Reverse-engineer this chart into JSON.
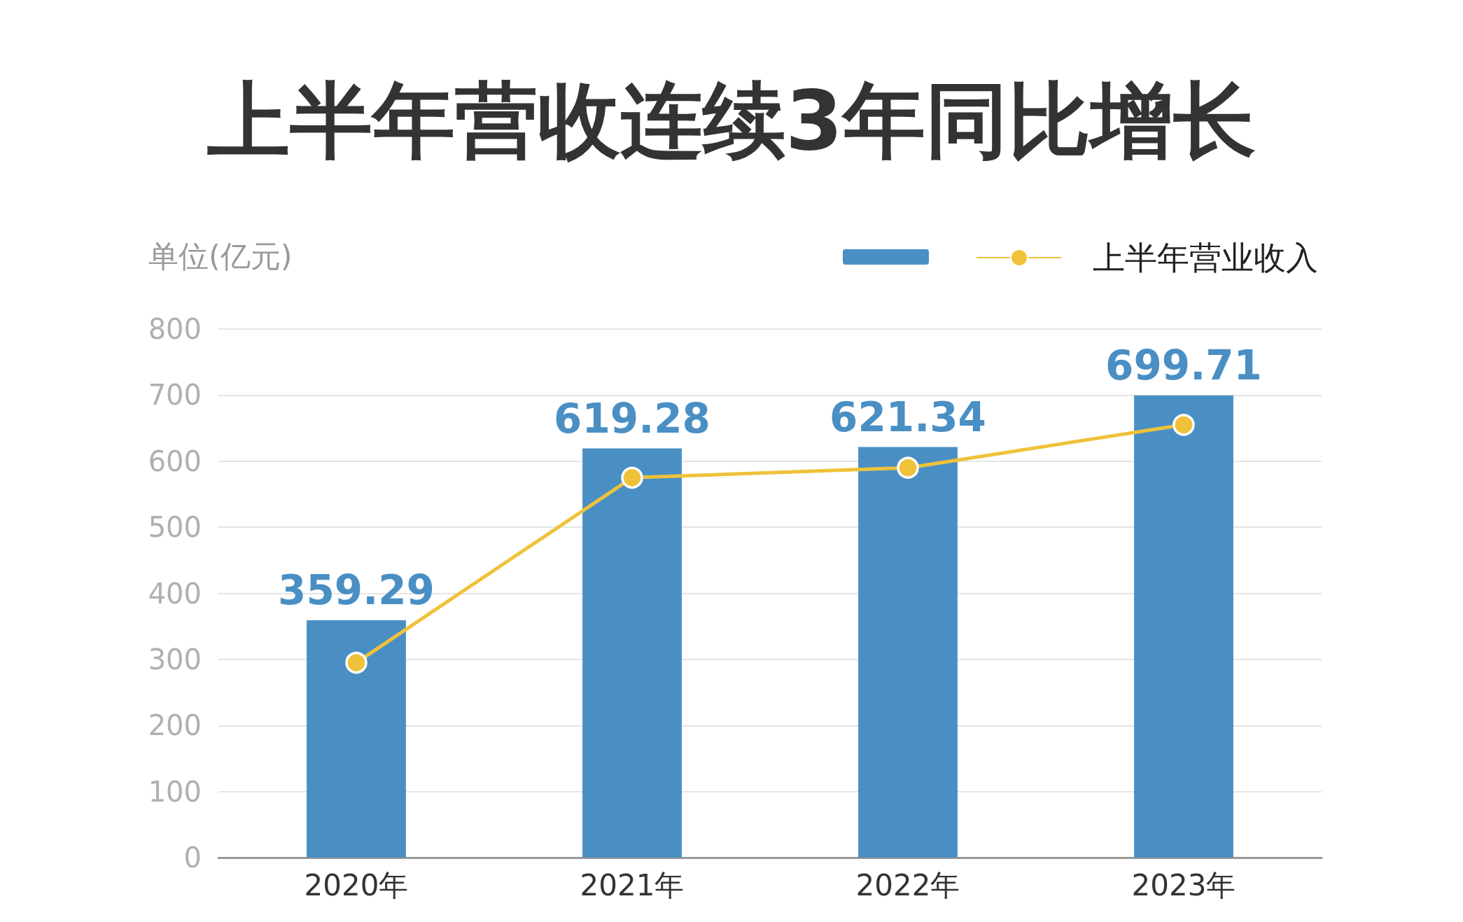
{
  "chart_data": {
    "type": "bar",
    "title": "上半年营收连续3年同比增长",
    "ylabel": "单位(亿元)",
    "categories": [
      "2020年",
      "2021年",
      "2022年",
      "2023年"
    ],
    "series": [
      {
        "color": "#4a8fc4",
        "values": [
          359.29,
          619.28,
          621.34,
          699.71
        ],
        "value_labels": [
          "359.29",
          "619.28",
          "621.34",
          "699.71"
        ]
      },
      {
        "type": "line",
        "name": "上半年营业收入",
        "color": "#efc23a",
        "values": [
          295,
          575,
          590,
          655
        ],
        "marker": "circle"
      }
    ],
    "ylim": [
      0,
      800
    ],
    "yticks": [
      0,
      100,
      200,
      300,
      400,
      500,
      600,
      700,
      800
    ],
    "grid": "y",
    "legend": "top right"
  }
}
